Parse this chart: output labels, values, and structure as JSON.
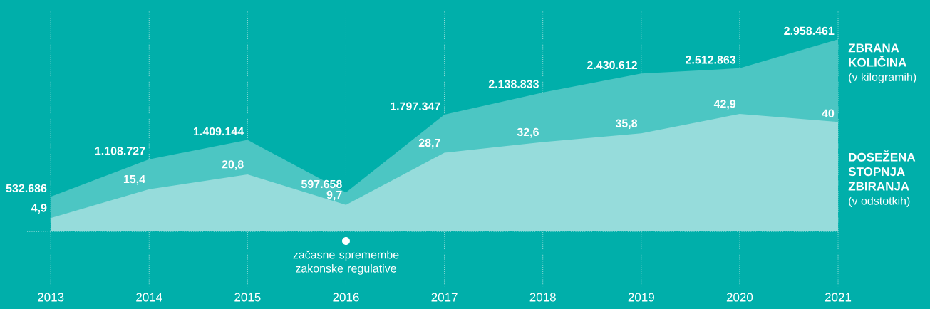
{
  "chart_data": {
    "type": "area",
    "categories": [
      "2013",
      "2014",
      "2015",
      "2016",
      "2017",
      "2018",
      "2019",
      "2020",
      "2021"
    ],
    "ylim": [
      -880000,
      3400000
    ],
    "y2lim": [
      -20.8,
      80.6
    ],
    "ylabel": "(v kilogramih)",
    "y2label": "(v odstotkih)",
    "tick_labels": "x",
    "grid": "x",
    "legend": "right",
    "series": [
      {
        "name": "ZBRANA KOLIČINA",
        "color": "#4cc6c3",
        "axis": "y",
        "values": [
          532686,
          1108727,
          1409144,
          597658,
          1797347,
          2138833,
          2430612,
          2512863,
          2958461
        ],
        "value_labels": [
          "532.686",
          "1.108.727",
          "1.409.144",
          "597.658",
          "1.797.347",
          "2.138.833",
          "2.430.612",
          "2.512.863",
          "2.958.461"
        ]
      },
      {
        "name": "DOSEŽENA STOPNJA ZBIRANJA",
        "color": "#96dcdb",
        "axis": "y2",
        "values": [
          4.9,
          15.4,
          20.8,
          9.7,
          28.7,
          32.6,
          35.8,
          42.9,
          40
        ],
        "value_labels": [
          "4,9",
          "15,4",
          "20,8",
          "9,7",
          "28,7",
          "32,6",
          "35,8",
          "42,9",
          "40"
        ]
      }
    ],
    "ref_lines": [
      {
        "axis": "y",
        "value": 0,
        "line_style": "dotted",
        "color": "#d8f2f1"
      }
    ],
    "annotations": [
      {
        "text": "začasne spremembe zakonske regulative",
        "x": "2016",
        "y": -150000
      }
    ]
  }
}
